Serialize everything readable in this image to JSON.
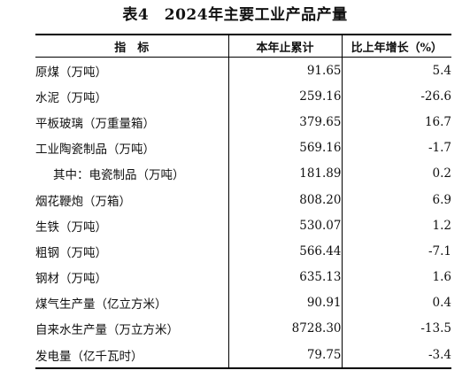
{
  "title": "表4　2024年主要工业产品产量",
  "headers": {
    "indicator": "指　标",
    "amount": "本年止累计",
    "growth": "比上年增长（%）"
  },
  "rows": [
    {
      "name": "原煤（万吨）",
      "amount": "91.65",
      "growth": "5.4"
    },
    {
      "name": "水泥（万吨）",
      "amount": "259.16",
      "growth": "-26.6"
    },
    {
      "name": "平板玻璃（万重量箱）",
      "amount": "379.65",
      "growth": "16.7"
    },
    {
      "name": "工业陶瓷制品（万吨）",
      "amount": "569.16",
      "growth": "-1.7"
    },
    {
      "name": "其中：电瓷制品（万吨）",
      "amount": "181.89",
      "growth": "0.2"
    },
    {
      "name": "烟花鞭炮（万箱）",
      "amount": "808.20",
      "growth": "6.9"
    },
    {
      "name": "生铁（万吨）",
      "amount": "530.07",
      "growth": "1.2"
    },
    {
      "name": "粗钢（万吨）",
      "amount": "566.44",
      "growth": "-7.1"
    },
    {
      "name": "钢材（万吨）",
      "amount": "635.13",
      "growth": "1.6"
    },
    {
      "name": "煤气生产量（亿立方米）",
      "amount": "90.91",
      "growth": "0.4"
    },
    {
      "name": "自来水生产量（万立方米）",
      "amount": "8728.30",
      "growth": "-13.5"
    },
    {
      "name": "发电量（亿千瓦时）",
      "amount": "79.75",
      "growth": "-3.4"
    }
  ]
}
